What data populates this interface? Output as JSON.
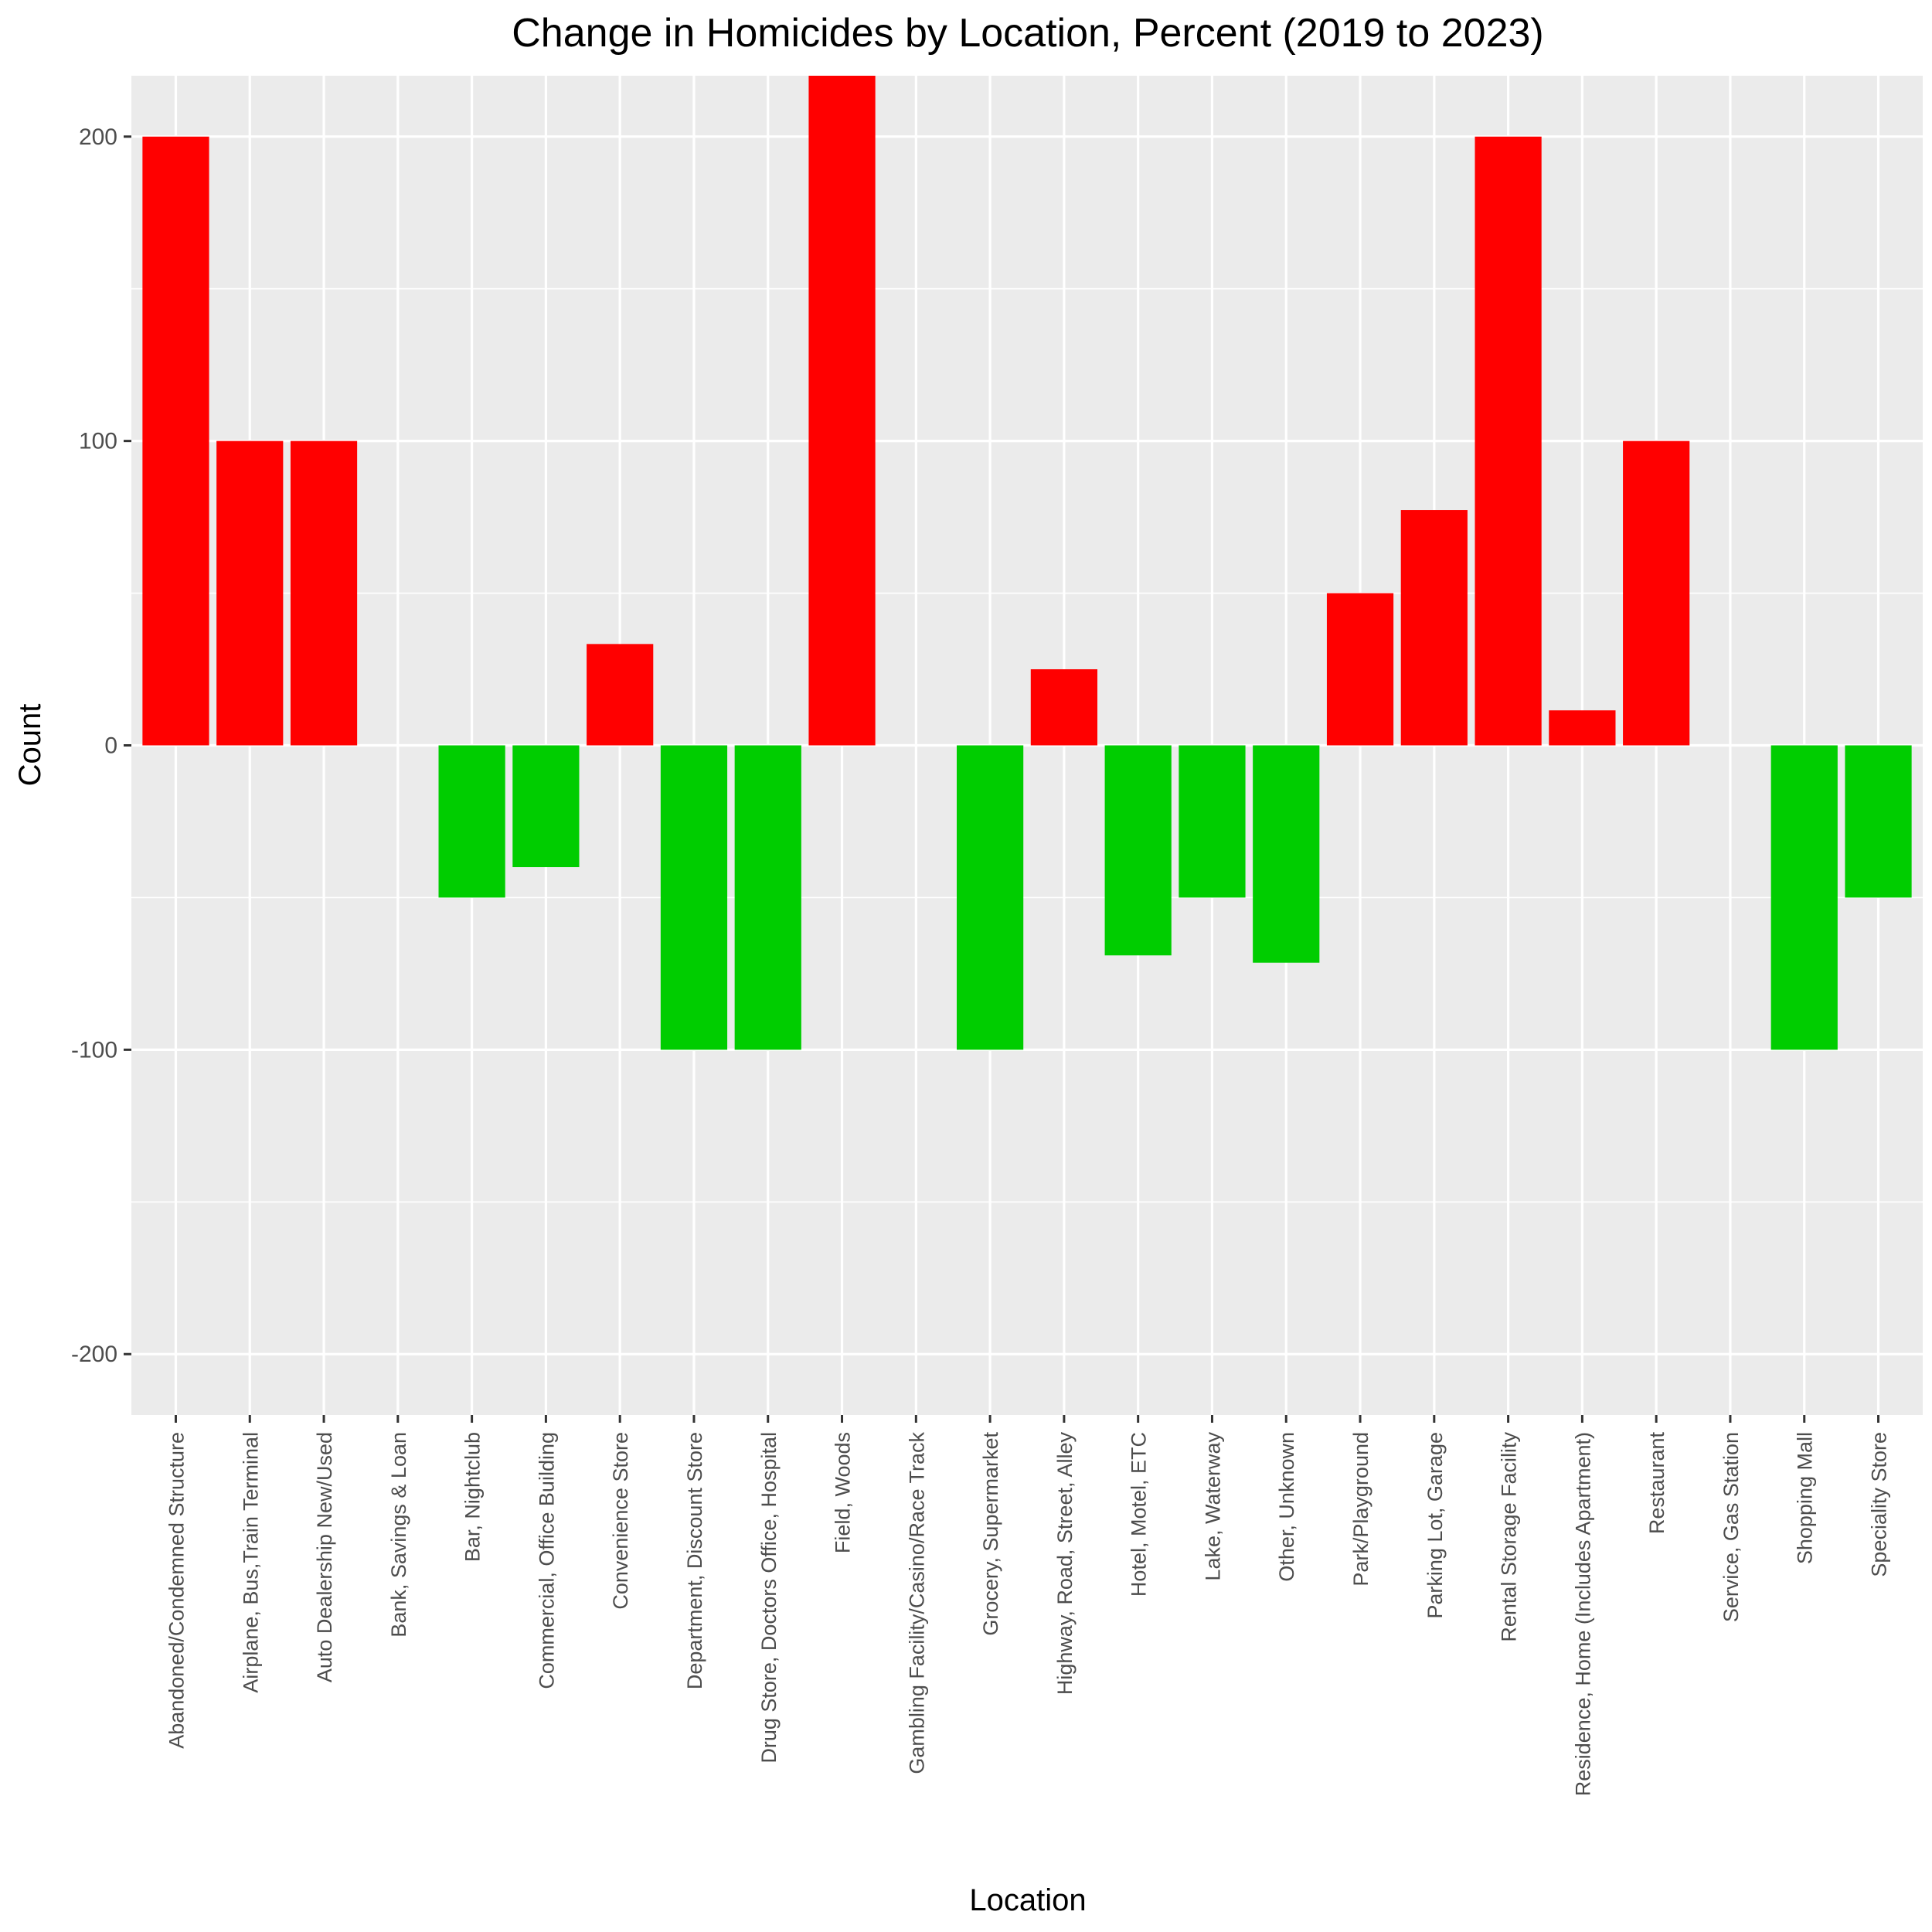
{
  "chart_data": {
    "type": "bar",
    "title": "Change in Homicides by Location, Percent (2019 to 2023)",
    "xlabel": "Location",
    "ylabel": "Count",
    "ylim": [
      -220,
      220
    ],
    "yticks": [
      -200,
      -100,
      0,
      100,
      200
    ],
    "grid": true,
    "legend": "none",
    "colors": {
      "increase": "#ff0000",
      "decrease": "#00cd00",
      "panel": "#ebebeb",
      "grid": "#ffffff"
    },
    "categories": [
      "Abandoned/Condemned Structure",
      "Airplane, Bus,Train Terminal",
      "Auto Dealership New/Used",
      "Bank, Savings & Loan",
      "Bar, Nightclub",
      "Commercial, Office Building",
      "Convenience Store",
      "Department, Discount Store",
      "Drug Store, Doctors Office, Hospital",
      "Field, Woods",
      "Gambling Facility/Casino/Race Track",
      "Grocery, Supermarket",
      "Highway, Road, Street, Alley",
      "Hotel, Motel, ETC",
      "Lake, Waterway",
      "Other, Unknown",
      "Park/Playground",
      "Parking Lot, Garage",
      "Rental Storage Facility",
      "Residence, Home (Includes Apartment)",
      "Restaurant",
      "Service, Gas Station",
      "Shopping Mall",
      "Speciality Store"
    ],
    "values": [
      200,
      100,
      100,
      0,
      -50,
      -40,
      33.3,
      -100,
      -100,
      220,
      0,
      -100,
      25,
      -69,
      -50,
      -71.4,
      50,
      77.3,
      200,
      11.5,
      100,
      0,
      -100,
      -50
    ]
  }
}
